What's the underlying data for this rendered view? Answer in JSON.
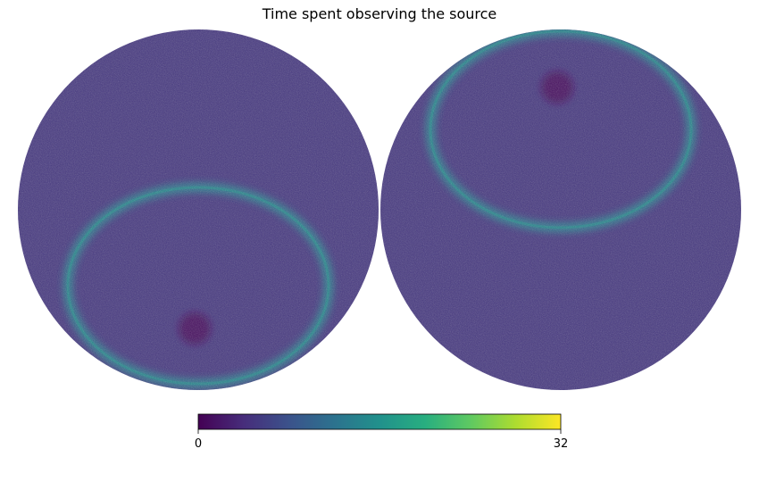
{
  "chart_data": {
    "type": "heatmap",
    "title": "Time spent observing the source",
    "projection": "orthographic (two hemispheres)",
    "colormap": "viridis",
    "colorbar": {
      "min": 0,
      "max": 32,
      "tick_labels": [
        "0",
        "32"
      ],
      "orientation": "horizontal",
      "placement": "bottom"
    },
    "hemispheres": [
      {
        "name": "",
        "background_level": 5,
        "ring_level": 13,
        "ring_feature": "bright ring in lower half",
        "low_spot": "lower center"
      },
      {
        "name": "",
        "background_level": 5,
        "ring_level": 13,
        "ring_feature": "bright ring in upper half",
        "low_spot": "upper center"
      }
    ]
  }
}
